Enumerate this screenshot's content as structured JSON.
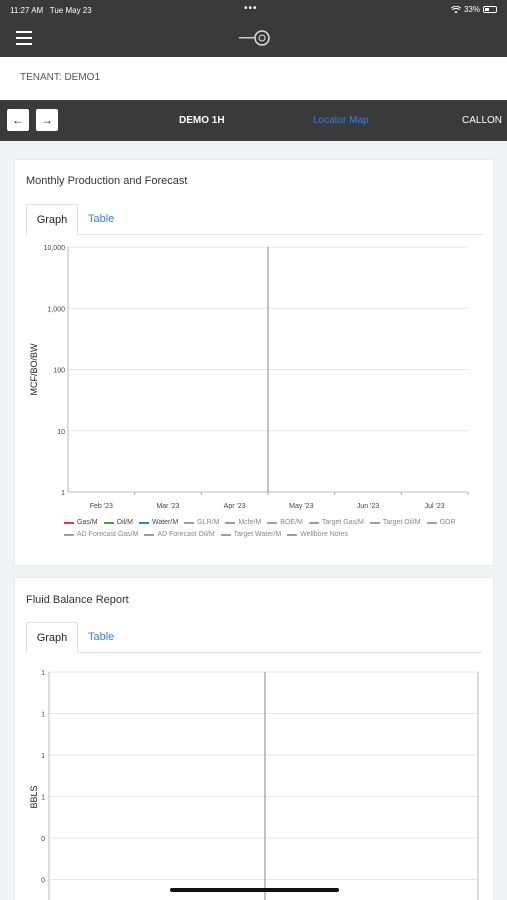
{
  "status_bar": {
    "time": "11:27 AM",
    "date": "Tue May 23",
    "dots": "•••",
    "battery": "33%"
  },
  "tenant": {
    "label": "TENANT: DEMO1"
  },
  "well_bar": {
    "prev_arrow": "←",
    "next_arrow": "→",
    "well_name": "DEMO 1H",
    "locator_map": "Locator Map",
    "operator": "CALLON"
  },
  "monthly": {
    "title": "Monthly Production and Forecast",
    "tabs": [
      "Graph",
      "Table"
    ],
    "legend": [
      {
        "label": "Gas/M",
        "color": "#e53935",
        "active": true
      },
      {
        "label": "Oil/M",
        "color": "#43a047",
        "active": true
      },
      {
        "label": "Water/M",
        "color": "#1e88e5",
        "active": true
      },
      {
        "label": "GLR/M",
        "color": "#9e9e9e",
        "active": false
      },
      {
        "label": "Mcfe/M",
        "color": "#9e9e9e",
        "active": false
      },
      {
        "label": "BOE/M",
        "color": "#9e9e9e",
        "active": false
      },
      {
        "label": "Target Gas/M",
        "color": "#9e9e9e",
        "active": false
      },
      {
        "label": "Target Oil/M",
        "color": "#9e9e9e",
        "active": false
      },
      {
        "label": "GOR",
        "color": "#9e9e9e",
        "active": false
      },
      {
        "label": "AD Forecast Gas/M",
        "color": "#9e9e9e",
        "active": false
      },
      {
        "label": "AD Forecast Oil/M",
        "color": "#9e9e9e",
        "active": false
      },
      {
        "label": "Target Water/M",
        "color": "#9e9e9e",
        "active": false
      },
      {
        "label": "Wellbore Notes",
        "color": "#9e9e9e",
        "active": false
      }
    ]
  },
  "fluid": {
    "title": "Fluid Balance Report",
    "tabs": [
      "Graph",
      "Table"
    ]
  },
  "chart_data": [
    {
      "type": "line",
      "title": "Monthly Production and Forecast",
      "ylabel": "MCF/BO/BW",
      "yscale": "log",
      "ylim": [
        1,
        10000
      ],
      "yticks": [
        "1",
        "10",
        "100",
        "1,000",
        "10,000"
      ],
      "categories": [
        "Feb '23",
        "Mar '23",
        "Apr '23",
        "May '23",
        "Jun '23",
        "Jul '23"
      ],
      "vertical_marker": "May '23",
      "grid": true,
      "series": []
    },
    {
      "type": "line",
      "title": "Fluid Balance Report",
      "ylabel": "BBLS",
      "yticks": [
        "1",
        "1",
        "1",
        "1",
        "0",
        "0"
      ],
      "grid": true,
      "series": []
    }
  ]
}
